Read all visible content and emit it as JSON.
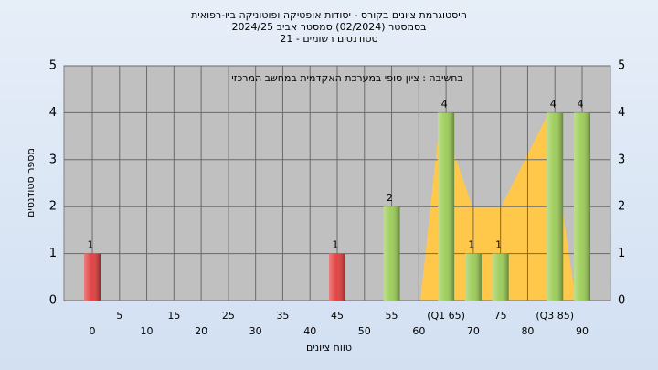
{
  "chart_data": {
    "type": "bar",
    "title": [
      "היסטוגרמת ציונים בקורס - יסודות אופטיקה ופוטוניקה ביו-רפואית",
      "בסמסטר  (02/2024)  סמסטר אביב 2024/25",
      "סטודנטים רשומים - 21"
    ],
    "annotation": "בחשיבה : ציון סופי במערכת האקדמית במחשב המרכזי",
    "xlabel": "טווח ציונים",
    "ylabel": "מספר סטודנטים",
    "categories": [
      "0",
      "5",
      "10",
      "15",
      "20",
      "25",
      "30",
      "35",
      "40",
      "45",
      "50",
      "55",
      "60",
      "(Q1 65)",
      "70",
      "75",
      "80",
      "(Q3 85)",
      "90"
    ],
    "values": [
      1,
      0,
      0,
      0,
      0,
      0,
      0,
      0,
      0,
      1,
      0,
      2,
      0,
      4,
      1,
      1,
      0,
      4,
      4
    ],
    "colors": [
      "#e03a3a",
      "#9bcc55",
      "#9bcc55",
      "#9bcc55",
      "#9bcc55",
      "#9bcc55",
      "#9bcc55",
      "#9bcc55",
      "#9bcc55",
      "#e03a3a",
      "#9bcc55",
      "#9bcc55",
      "#9bcc55",
      "#9bcc55",
      "#9bcc55",
      "#9bcc55",
      "#9bcc55",
      "#9bcc55",
      "#9bcc55"
    ],
    "ylim": [
      0,
      5
    ],
    "yticks": [
      0,
      1,
      2,
      3,
      4,
      5
    ],
    "grid": true
  }
}
